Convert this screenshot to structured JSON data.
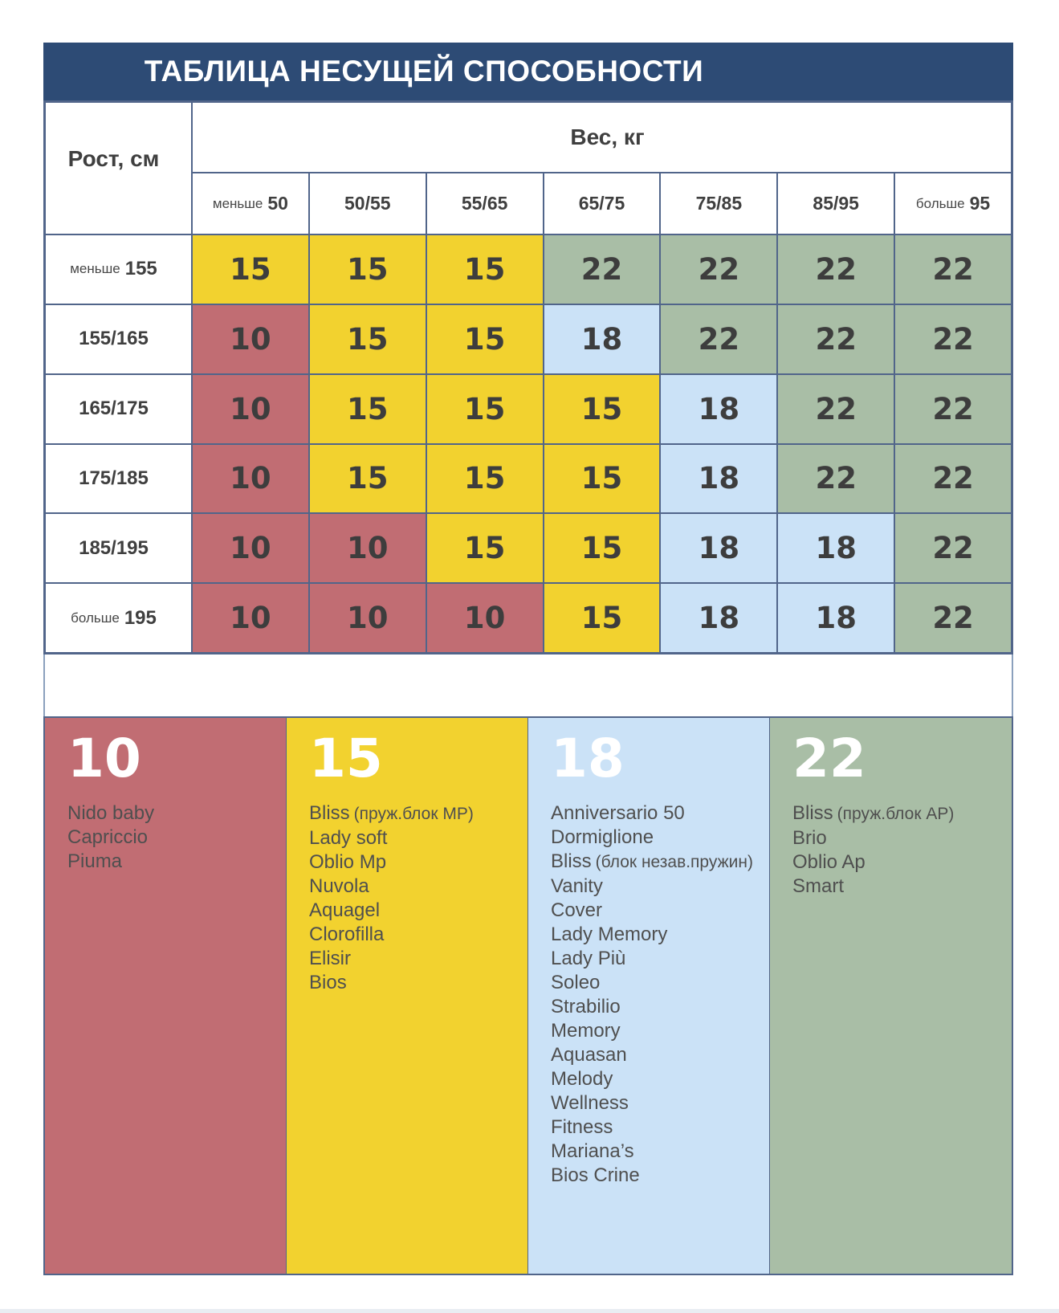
{
  "title": "ТАБЛИЦА НЕСУЩЕЙ СПОСОБНОСТИ",
  "axes": {
    "weight": "Вес, кг",
    "height": "Рост, см"
  },
  "colors": {
    "header_bg": "#2d4b75",
    "red": "#c16d73",
    "yellow": "#f2d22f",
    "blue": "#cbe2f7",
    "green": "#a9bea6",
    "border": "#51658a",
    "cell_text": "#3d3d3d",
    "footer_bar": "#e9edf2"
  },
  "table": {
    "columns": [
      {
        "prefix": "меньше",
        "label": "50"
      },
      {
        "label": "50/55"
      },
      {
        "label": "55/65"
      },
      {
        "label": "65/75"
      },
      {
        "label": "75/85"
      },
      {
        "label": "85/95"
      },
      {
        "prefix": "больше",
        "label": "95"
      }
    ],
    "rows": [
      {
        "prefix": "меньше",
        "label": "155",
        "cells": [
          {
            "value": 15,
            "color": "yellow"
          },
          {
            "value": 15,
            "color": "yellow"
          },
          {
            "value": 15,
            "color": "yellow"
          },
          {
            "value": 22,
            "color": "green"
          },
          {
            "value": 22,
            "color": "green"
          },
          {
            "value": 22,
            "color": "green"
          },
          {
            "value": 22,
            "color": "green"
          }
        ]
      },
      {
        "label": "155/165",
        "cells": [
          {
            "value": 10,
            "color": "red"
          },
          {
            "value": 15,
            "color": "yellow"
          },
          {
            "value": 15,
            "color": "yellow"
          },
          {
            "value": 18,
            "color": "blue"
          },
          {
            "value": 22,
            "color": "green"
          },
          {
            "value": 22,
            "color": "green"
          },
          {
            "value": 22,
            "color": "green"
          }
        ]
      },
      {
        "label": "165/175",
        "cells": [
          {
            "value": 10,
            "color": "red"
          },
          {
            "value": 15,
            "color": "yellow"
          },
          {
            "value": 15,
            "color": "yellow"
          },
          {
            "value": 15,
            "color": "yellow"
          },
          {
            "value": 18,
            "color": "blue"
          },
          {
            "value": 22,
            "color": "green"
          },
          {
            "value": 22,
            "color": "green"
          }
        ]
      },
      {
        "label": "175/185",
        "cells": [
          {
            "value": 10,
            "color": "red"
          },
          {
            "value": 15,
            "color": "yellow"
          },
          {
            "value": 15,
            "color": "yellow"
          },
          {
            "value": 15,
            "color": "yellow"
          },
          {
            "value": 18,
            "color": "blue"
          },
          {
            "value": 22,
            "color": "green"
          },
          {
            "value": 22,
            "color": "green"
          }
        ]
      },
      {
        "label": "185/195",
        "cells": [
          {
            "value": 10,
            "color": "red"
          },
          {
            "value": 10,
            "color": "red"
          },
          {
            "value": 15,
            "color": "yellow"
          },
          {
            "value": 15,
            "color": "yellow"
          },
          {
            "value": 18,
            "color": "blue"
          },
          {
            "value": 18,
            "color": "blue"
          },
          {
            "value": 22,
            "color": "green"
          }
        ]
      },
      {
        "prefix": "больше",
        "label": "195",
        "cells": [
          {
            "value": 10,
            "color": "red"
          },
          {
            "value": 10,
            "color": "red"
          },
          {
            "value": 10,
            "color": "red"
          },
          {
            "value": 15,
            "color": "yellow"
          },
          {
            "value": 18,
            "color": "blue"
          },
          {
            "value": 18,
            "color": "blue"
          },
          {
            "value": 22,
            "color": "green"
          }
        ]
      }
    ]
  },
  "legend": [
    {
      "value": "10",
      "color": "red",
      "items": [
        {
          "name": "Nido baby"
        },
        {
          "name": "Capriccio"
        },
        {
          "name": "Piuma"
        }
      ]
    },
    {
      "value": "15",
      "color": "yellow",
      "items": [
        {
          "name": "Bliss",
          "note": "(пруж.блок MP)"
        },
        {
          "name": "Lady soft"
        },
        {
          "name": "Oblio Mp"
        },
        {
          "name": "Nuvola"
        },
        {
          "name": "Aquagel"
        },
        {
          "name": "Clorofilla"
        },
        {
          "name": "Elisir"
        },
        {
          "name": "Bios"
        }
      ]
    },
    {
      "value": "18",
      "color": "blue",
      "items": [
        {
          "name": "Anniversario 50"
        },
        {
          "name": "Dormiglione"
        },
        {
          "name": "Bliss",
          "note": "(блок незав.пружин)"
        },
        {
          "name": "Vanity"
        },
        {
          "name": "Cover"
        },
        {
          "name": "Lady Memory"
        },
        {
          "name": "Lady Più"
        },
        {
          "name": "Soleo"
        },
        {
          "name": "Strabilio"
        },
        {
          "name": "Memory"
        },
        {
          "name": "Aquasan"
        },
        {
          "name": "Melody"
        },
        {
          "name": "Wellness"
        },
        {
          "name": "Fitness"
        },
        {
          "name": "Mariana’s"
        },
        {
          "name": "Bios Crine"
        }
      ]
    },
    {
      "value": "22",
      "color": "green",
      "items": [
        {
          "name": "Bliss",
          "note": "(пруж.блок AP)"
        },
        {
          "name": "Brio"
        },
        {
          "name": "Oblio Ap"
        },
        {
          "name": "Smart"
        }
      ]
    }
  ],
  "chart_data": {
    "type": "table",
    "title": "ТАБЛИЦА НЕСУЩЕЙ СПОСОБНОСТИ",
    "col_axis_label": "Вес, кг",
    "row_axis_label": "Рост, см",
    "columns": [
      "меньше 50",
      "50/55",
      "55/65",
      "65/75",
      "75/85",
      "85/95",
      "больше 95"
    ],
    "rows": [
      "меньше 155",
      "155/165",
      "165/175",
      "175/185",
      "185/195",
      "больше 195"
    ],
    "values": [
      [
        15,
        15,
        15,
        22,
        22,
        22,
        22
      ],
      [
        10,
        15,
        15,
        18,
        22,
        22,
        22
      ],
      [
        10,
        15,
        15,
        15,
        18,
        22,
        22
      ],
      [
        10,
        15,
        15,
        15,
        18,
        22,
        22
      ],
      [
        10,
        10,
        15,
        15,
        18,
        18,
        22
      ],
      [
        10,
        10,
        10,
        15,
        18,
        18,
        22
      ]
    ],
    "value_colors": {
      "10": "#c16d73",
      "15": "#f2d22f",
      "18": "#cbe2f7",
      "22": "#a9bea6"
    },
    "legend_position": "bottom"
  }
}
